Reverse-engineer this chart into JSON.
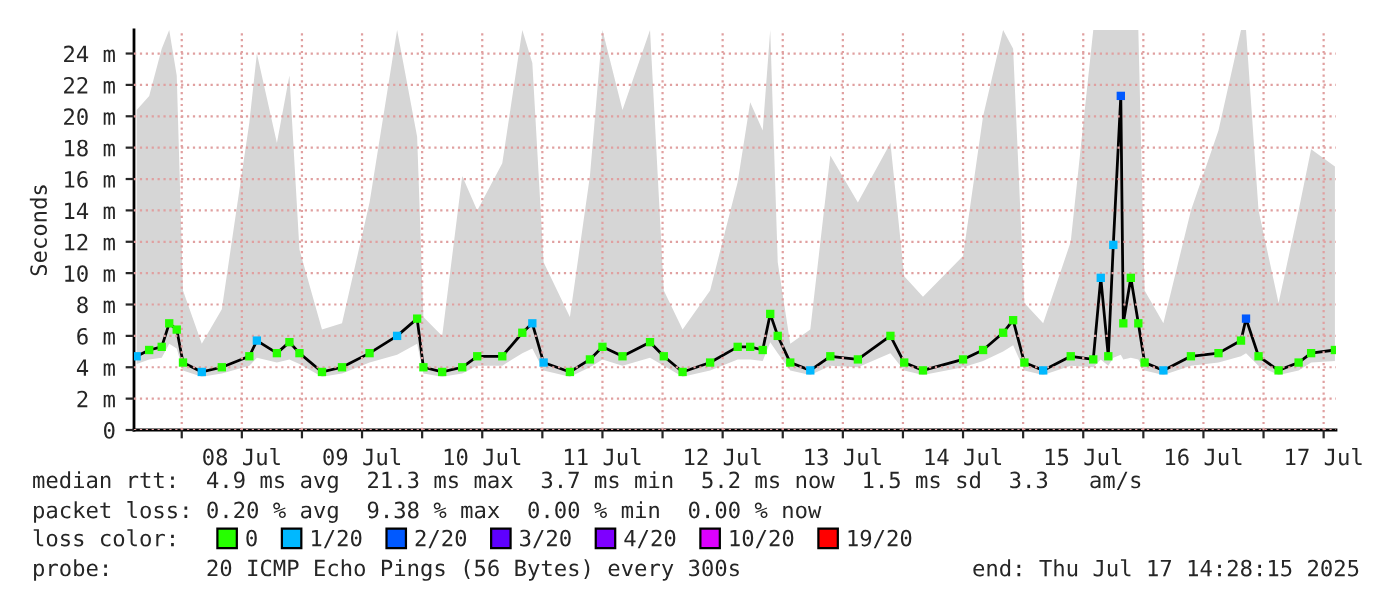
{
  "chart_data": {
    "type": "line",
    "ylabel": "Seconds",
    "legend_title": "loss color:",
    "legend": "bottom",
    "grid": true,
    "line_style": "solid",
    "xlim": [
      "2025-07-07T14:28",
      "2025-07-17T14:28"
    ],
    "ylim": [
      0,
      25.5
    ],
    "yticks": [
      0,
      {
        "value": 2,
        "label": "2 m"
      },
      {
        "value": 4,
        "label": "4 m"
      },
      {
        "value": 6,
        "label": "6 m"
      },
      {
        "value": 8,
        "label": "8 m"
      },
      {
        "value": 10,
        "label": "10 m"
      },
      {
        "value": 12,
        "label": "12 m"
      },
      {
        "value": 14,
        "label": "14 m"
      },
      {
        "value": 16,
        "label": "16 m"
      },
      {
        "value": 18,
        "label": "18 m"
      },
      {
        "value": 20,
        "label": "20 m"
      },
      {
        "value": 22,
        "label": "22 m"
      },
      {
        "value": 24,
        "label": "24 m"
      }
    ],
    "xticks": [
      {
        "value": "2025-07-08",
        "label": null
      },
      {
        "value": "2025-07-08T12:00",
        "label": "08 Jul"
      },
      {
        "value": "2025-07-09",
        "label": null
      },
      {
        "value": "2025-07-09T12:00",
        "label": "09 Jul"
      },
      {
        "value": "2025-07-10",
        "label": null
      },
      {
        "value": "2025-07-10T12:00",
        "label": "10 Jul"
      },
      {
        "value": "2025-07-11",
        "label": null
      },
      {
        "value": "2025-07-11T12:00",
        "label": "11 Jul"
      },
      {
        "value": "2025-07-12",
        "label": null
      },
      {
        "value": "2025-07-12T12:00",
        "label": "12 Jul"
      },
      {
        "value": "2025-07-13",
        "label": null
      },
      {
        "value": "2025-07-13T12:00",
        "label": "13 Jul"
      },
      {
        "value": "2025-07-14",
        "label": null
      },
      {
        "value": "2025-07-14T12:00",
        "label": "14 Jul"
      },
      {
        "value": "2025-07-15",
        "label": null
      },
      {
        "value": "2025-07-15T12:00",
        "label": "15 Jul"
      },
      {
        "value": "2025-07-16",
        "label": null
      },
      {
        "value": "2025-07-16T12:00",
        "label": "16 Jul"
      },
      {
        "value": "2025-07-17",
        "label": null
      },
      {
        "value": "2025-07-17T12:00",
        "label": "17 Jul"
      }
    ],
    "x": [
      "2025-07-07T15:00",
      "2025-07-07T17:30",
      "2025-07-07T20:00",
      "2025-07-07T21:30",
      "2025-07-07T23:00",
      "2025-07-08T00:15",
      "2025-07-08T04:00",
      "2025-07-08T08:00",
      "2025-07-08T13:30",
      "2025-07-08T15:00",
      "2025-07-08T19:00",
      "2025-07-08T21:30",
      "2025-07-08T23:30",
      "2025-07-09T04:00",
      "2025-07-09T08:00",
      "2025-07-09T13:30",
      "2025-07-09T19:00",
      "2025-07-09T23:00",
      "2025-07-10T00:15",
      "2025-07-10T04:00",
      "2025-07-10T08:00",
      "2025-07-10T11:00",
      "2025-07-10T16:00",
      "2025-07-10T20:00",
      "2025-07-10T22:00",
      "2025-07-11T00:15",
      "2025-07-11T05:30",
      "2025-07-11T09:30",
      "2025-07-11T12:00",
      "2025-07-11T16:00",
      "2025-07-11T21:30",
      "2025-07-12T00:15",
      "2025-07-12T04:00",
      "2025-07-12T09:30",
      "2025-07-12T15:00",
      "2025-07-12T17:30",
      "2025-07-12T20:00",
      "2025-07-12T21:30",
      "2025-07-12T23:00",
      "2025-07-13T01:30",
      "2025-07-13T05:30",
      "2025-07-13T09:30",
      "2025-07-13T15:00",
      "2025-07-13T21:30",
      "2025-07-14T00:15",
      "2025-07-14T04:00",
      "2025-07-14T12:00",
      "2025-07-14T16:00",
      "2025-07-14T20:00",
      "2025-07-14T22:00",
      "2025-07-15T00:15",
      "2025-07-15T04:00",
      "2025-07-15T09:30",
      "2025-07-15T14:00",
      "2025-07-15T15:30",
      "2025-07-15T17:00",
      "2025-07-15T18:00",
      "2025-07-15T19:30",
      "2025-07-15T20:00",
      "2025-07-15T21:30",
      "2025-07-15T23:00",
      "2025-07-16T00:15",
      "2025-07-16T04:00",
      "2025-07-16T09:30",
      "2025-07-16T15:00",
      "2025-07-16T19:30",
      "2025-07-16T20:30",
      "2025-07-16T23:00",
      "2025-07-17T03:00",
      "2025-07-17T07:00",
      "2025-07-17T09:30",
      "2025-07-17T14:15"
    ],
    "series": [
      {
        "color": "#000000",
        "values": [
          4.7,
          5.1,
          5.3,
          6.8,
          6.4,
          4.3,
          3.7,
          4.0,
          4.7,
          5.7,
          4.9,
          5.6,
          4.9,
          3.7,
          4.0,
          4.9,
          6.0,
          7.1,
          4.0,
          3.7,
          4.0,
          4.7,
          4.7,
          6.2,
          6.8,
          4.3,
          3.7,
          4.5,
          5.3,
          4.7,
          5.6,
          4.7,
          3.7,
          4.3,
          5.3,
          5.3,
          5.1,
          7.4,
          6.0,
          4.3,
          3.8,
          4.7,
          4.5,
          6.0,
          4.3,
          3.8,
          4.5,
          5.1,
          6.2,
          7.0,
          4.3,
          3.8,
          4.7,
          4.5,
          9.7,
          4.7,
          11.8,
          21.3,
          6.8,
          9.7,
          6.8,
          4.3,
          3.8,
          4.7,
          4.9,
          5.7,
          7.1,
          4.7,
          3.8,
          4.3,
          4.9,
          5.1
        ],
        "lower": [
          4.2,
          4.5,
          4.6,
          5.5,
          5.2,
          3.8,
          3.4,
          3.6,
          4.1,
          4.6,
          4.3,
          4.5,
          4.2,
          3.4,
          3.6,
          4.3,
          4.8,
          5.5,
          3.6,
          3.4,
          3.6,
          4.1,
          4.1,
          4.9,
          5.2,
          3.8,
          3.4,
          4.0,
          4.5,
          4.1,
          4.6,
          4.1,
          3.4,
          3.8,
          4.5,
          4.5,
          4.4,
          5.6,
          4.9,
          3.8,
          3.5,
          4.1,
          4.0,
          4.9,
          3.8,
          3.5,
          4.0,
          4.4,
          5.0,
          5.4,
          3.8,
          3.5,
          4.1,
          4.0,
          4.5,
          4.1,
          4.6,
          4.8,
          4.5,
          4.6,
          4.5,
          3.8,
          3.5,
          4.1,
          4.3,
          4.7,
          4.9,
          4.1,
          3.5,
          3.8,
          4.3,
          4.4
        ],
        "upper": [
          20.4,
          21.3,
          24.3,
          25.5,
          22.6,
          8.9,
          5.5,
          7.7,
          19.6,
          24.0,
          18.3,
          22.6,
          11.5,
          6.4,
          6.8,
          14.5,
          25.5,
          18.7,
          7.2,
          6.0,
          16.2,
          14.0,
          17.0,
          25.5,
          23.4,
          10.7,
          7.2,
          16.2,
          25.5,
          20.4,
          25.5,
          8.9,
          6.4,
          8.9,
          15.8,
          20.9,
          19.1,
          25.5,
          10.7,
          5.5,
          6.4,
          17.5,
          14.5,
          18.3,
          9.8,
          8.5,
          11.1,
          20.0,
          25.5,
          24.3,
          8.1,
          6.8,
          12.0,
          25.5,
          25.5,
          25.5,
          25.5,
          25.5,
          25.5,
          25.5,
          25.5,
          8.9,
          6.8,
          14.0,
          19.1,
          25.5,
          25.5,
          14.0,
          8.1,
          14.0,
          17.9,
          16.8
        ]
      },
      {
        "type": "scatter",
        "name": "0",
        "color": "#26ff00",
        "marker": "square",
        "values": [
          null,
          5.1,
          5.3,
          6.8,
          6.4,
          4.3,
          null,
          4.0,
          4.7,
          null,
          4.9,
          5.6,
          4.9,
          3.7,
          4.0,
          4.9,
          null,
          7.1,
          4.0,
          3.7,
          4.0,
          4.7,
          4.7,
          6.2,
          null,
          null,
          3.7,
          4.5,
          5.3,
          4.7,
          5.6,
          4.7,
          3.7,
          4.3,
          5.3,
          5.3,
          5.1,
          7.4,
          6.0,
          4.3,
          null,
          4.7,
          4.5,
          6.0,
          4.3,
          3.8,
          4.5,
          5.1,
          6.2,
          7.0,
          4.3,
          null,
          4.7,
          4.5,
          null,
          4.7,
          null,
          null,
          6.8,
          9.7,
          6.8,
          4.3,
          null,
          4.7,
          4.9,
          5.7,
          null,
          4.7,
          3.8,
          4.3,
          4.9,
          5.1
        ]
      },
      {
        "type": "scatter",
        "name": "1/20",
        "color": "#00b8ff",
        "marker": "square",
        "values": [
          4.7,
          null,
          null,
          null,
          null,
          null,
          3.7,
          null,
          null,
          5.7,
          null,
          null,
          null,
          null,
          null,
          null,
          6.0,
          null,
          null,
          null,
          null,
          null,
          null,
          null,
          6.8,
          4.3,
          null,
          null,
          null,
          null,
          null,
          null,
          null,
          null,
          null,
          null,
          null,
          null,
          null,
          null,
          3.8,
          null,
          null,
          null,
          null,
          null,
          null,
          null,
          null,
          null,
          null,
          3.8,
          null,
          null,
          9.7,
          null,
          11.8,
          null,
          null,
          null,
          null,
          null,
          3.8,
          null,
          null,
          null,
          null,
          null,
          null,
          null,
          null,
          null
        ]
      },
      {
        "type": "scatter",
        "name": "2/20",
        "color": "#0059ff",
        "marker": "square",
        "values": [
          null,
          null,
          null,
          null,
          null,
          null,
          null,
          null,
          null,
          null,
          null,
          null,
          null,
          null,
          null,
          null,
          null,
          null,
          null,
          null,
          null,
          null,
          null,
          null,
          null,
          null,
          null,
          null,
          null,
          null,
          null,
          null,
          null,
          null,
          null,
          null,
          null,
          null,
          null,
          null,
          null,
          null,
          null,
          null,
          null,
          null,
          null,
          null,
          null,
          null,
          null,
          null,
          null,
          null,
          null,
          null,
          null,
          21.3,
          null,
          null,
          null,
          null,
          null,
          null,
          null,
          null,
          7.1,
          null,
          null,
          null,
          null,
          null
        ]
      },
      {
        "type": "scatter",
        "name": "3/20",
        "color": "#5e00ff",
        "marker": "square",
        "values": [
          null,
          null,
          null,
          null,
          null,
          null,
          null,
          null,
          null,
          null,
          null,
          null,
          null,
          null,
          null,
          null,
          null,
          null,
          null,
          null,
          null,
          null,
          null,
          null,
          null,
          null,
          null,
          null,
          null,
          null,
          null,
          null,
          null,
          null,
          null,
          null,
          null,
          null,
          null,
          null,
          null,
          null,
          null,
          null,
          null,
          null,
          null,
          null,
          null,
          null,
          null,
          null,
          null,
          null,
          null,
          null,
          null,
          null,
          null,
          null,
          null,
          null,
          null,
          null,
          null,
          null,
          null,
          null,
          null,
          null,
          null,
          null
        ]
      },
      {
        "type": "scatter",
        "name": "4/20",
        "color": "#7e00ff",
        "marker": "square",
        "values": [
          null,
          null,
          null,
          null,
          null,
          null,
          null,
          null,
          null,
          null,
          null,
          null,
          null,
          null,
          null,
          null,
          null,
          null,
          null,
          null,
          null,
          null,
          null,
          null,
          null,
          null,
          null,
          null,
          null,
          null,
          null,
          null,
          null,
          null,
          null,
          null,
          null,
          null,
          null,
          null,
          null,
          null,
          null,
          null,
          null,
          null,
          null,
          null,
          null,
          null,
          null,
          null,
          null,
          null,
          null,
          null,
          null,
          null,
          null,
          null,
          null,
          null,
          null,
          null,
          null,
          null,
          null,
          null,
          null,
          null,
          null,
          null
        ]
      },
      {
        "type": "scatter",
        "name": "10/20",
        "color": "#dd00ff",
        "marker": "square",
        "values": [
          null,
          null,
          null,
          null,
          null,
          null,
          null,
          null,
          null,
          null,
          null,
          null,
          null,
          null,
          null,
          null,
          null,
          null,
          null,
          null,
          null,
          null,
          null,
          null,
          null,
          null,
          null,
          null,
          null,
          null,
          null,
          null,
          null,
          null,
          null,
          null,
          null,
          null,
          null,
          null,
          null,
          null,
          null,
          null,
          null,
          null,
          null,
          null,
          null,
          null,
          null,
          null,
          null,
          null,
          null,
          null,
          null,
          null,
          null,
          null,
          null,
          null,
          null,
          null,
          null,
          null,
          null,
          null,
          null,
          null,
          null,
          null
        ]
      },
      {
        "type": "scatter",
        "name": "19/20",
        "color": "#ff0000",
        "marker": "square",
        "values": [
          null,
          null,
          null,
          null,
          null,
          null,
          null,
          null,
          null,
          null,
          null,
          null,
          null,
          null,
          null,
          null,
          null,
          null,
          null,
          null,
          null,
          null,
          null,
          null,
          null,
          null,
          null,
          null,
          null,
          null,
          null,
          null,
          null,
          null,
          null,
          null,
          null,
          null,
          null,
          null,
          null,
          null,
          null,
          null,
          null,
          null,
          null,
          null,
          null,
          null,
          null,
          null,
          null,
          null,
          null,
          null,
          null,
          null,
          null,
          null,
          null,
          null,
          null,
          null,
          null,
          null,
          null,
          null,
          null,
          null,
          null,
          null
        ]
      }
    ],
    "annotations": [
      "median rtt:  4.9 ms avg  21.3 ms max  3.7 ms min  5.2 ms now  1.5 ms sd  3.3   am/s",
      "packet loss: 0.20 % avg  9.38 % max  0.00 % min  0.00 % now",
      "probe:       20 ICMP Echo Pings (56 Bytes) every 300s",
      "end: Thu Jul 17 14:28:15 2025"
    ]
  }
}
